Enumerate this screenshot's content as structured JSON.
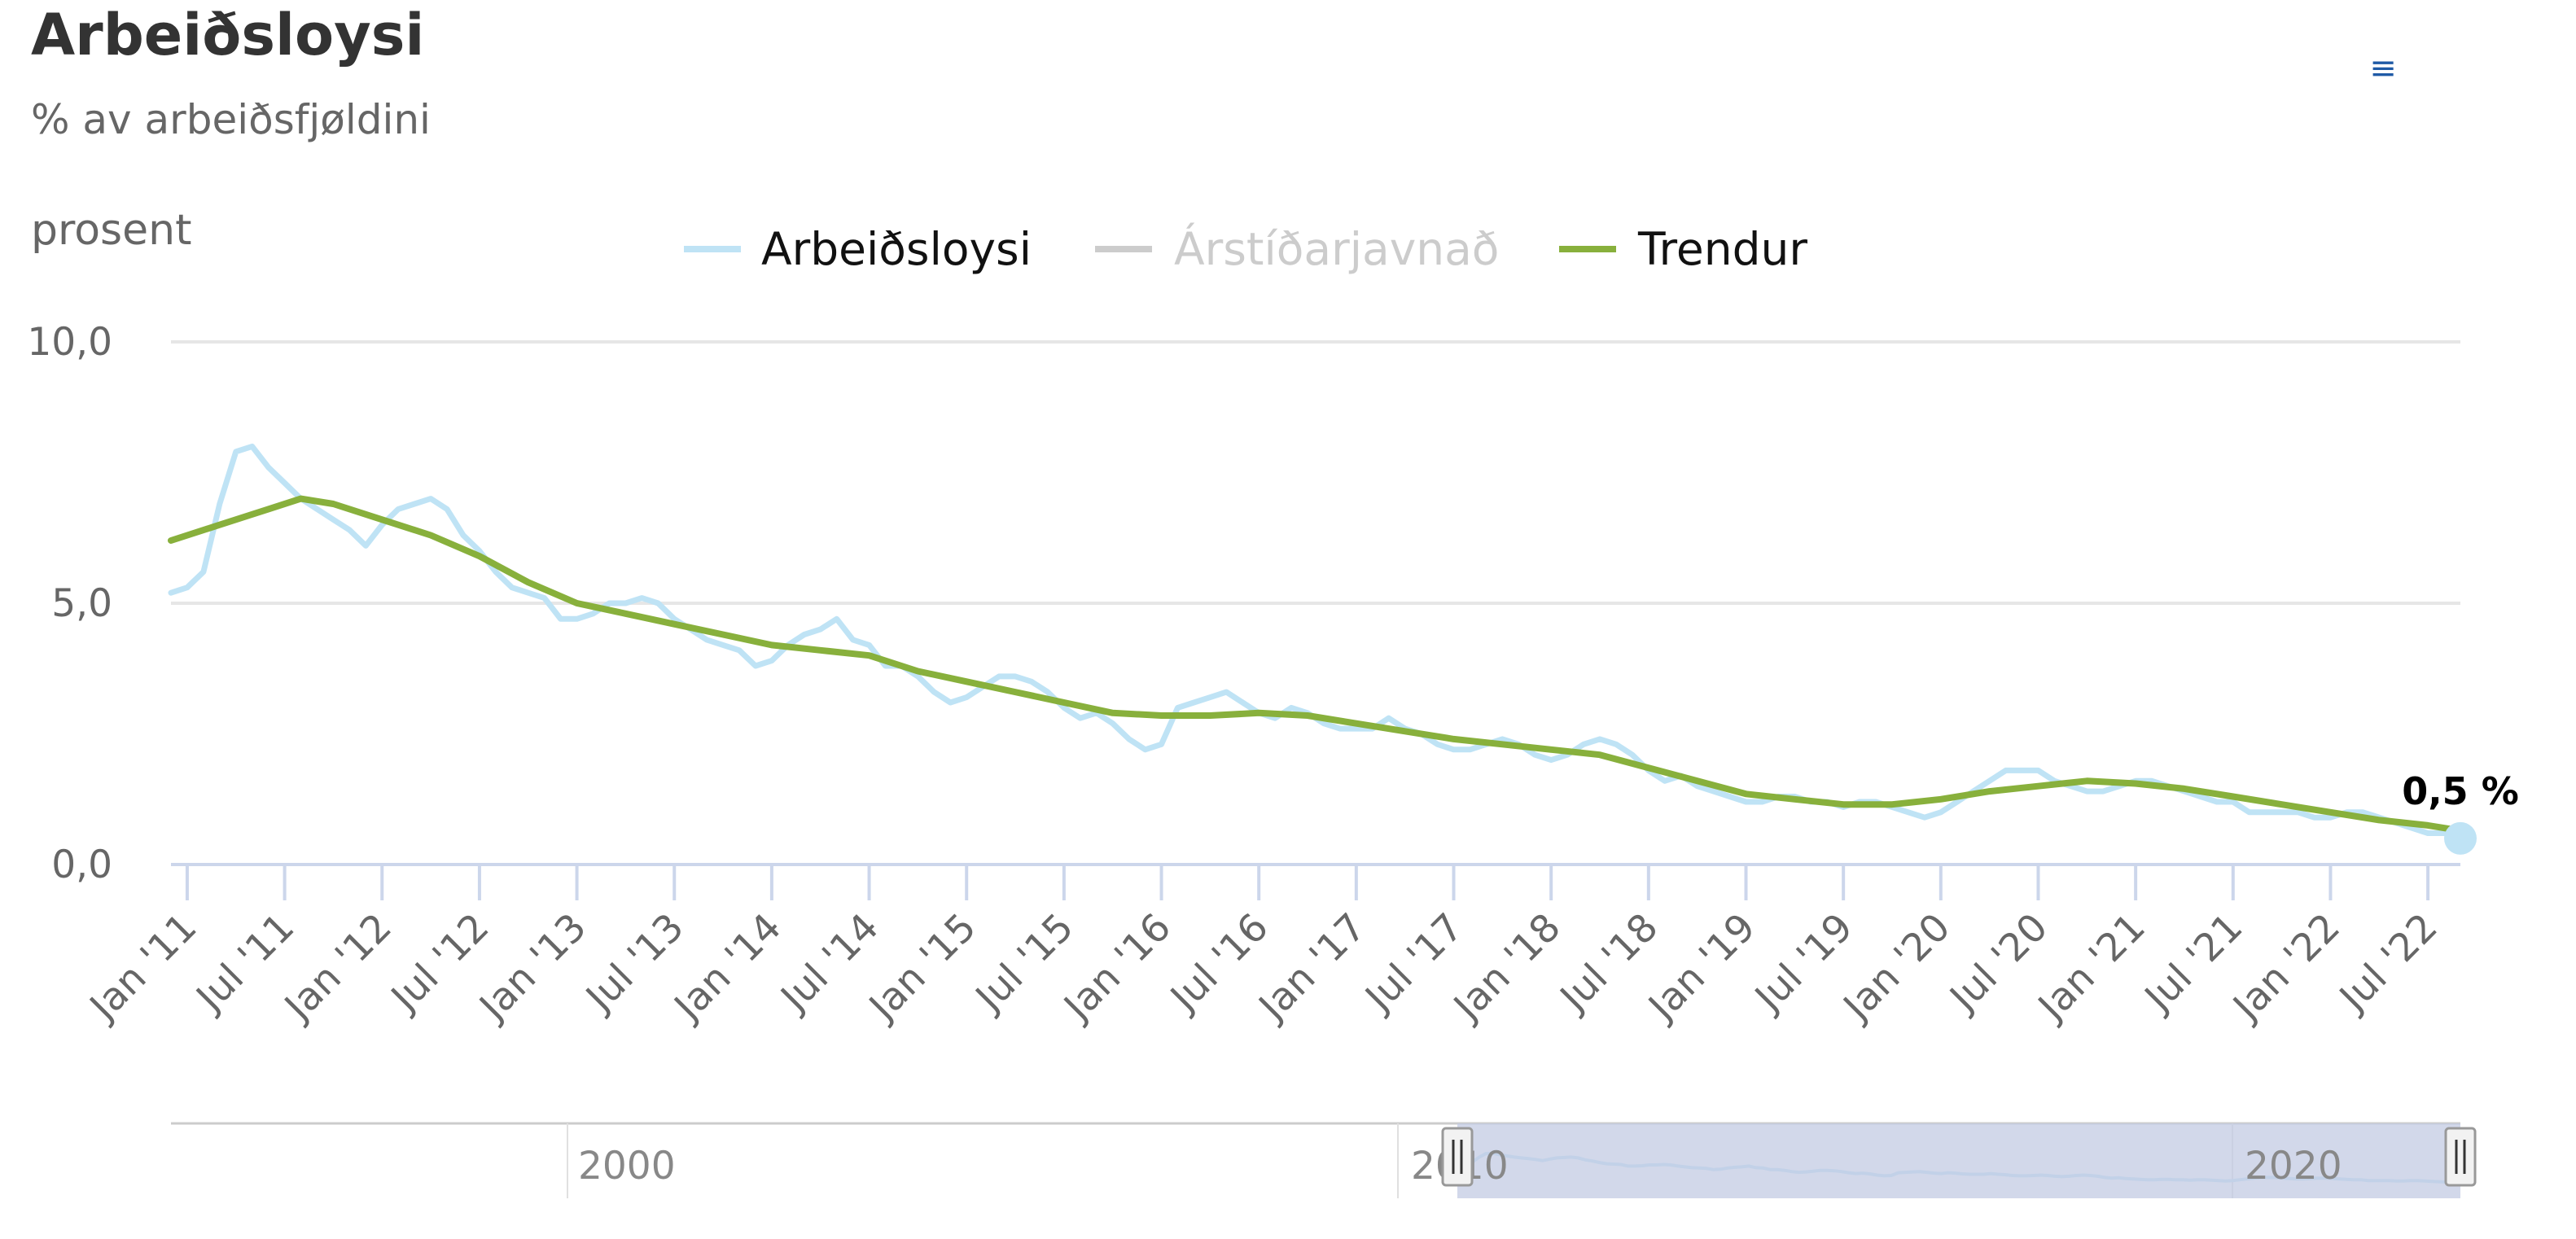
{
  "header": {
    "title": "Arbeiðsloysi",
    "subtitle": "% av arbeiðsfjøldini",
    "menu_icon": "hamburger-menu-icon"
  },
  "colors": {
    "unemployment": "#bfe3f5",
    "seasonal": "#cccccc",
    "trend": "#88b03c",
    "grid": "#e6e6e6",
    "axis": "#ccd6eb",
    "navigator_mask": "#c3cbe3"
  },
  "navigator": {
    "labels": [
      "2000",
      "2010",
      "2020"
    ]
  },
  "chart_data": {
    "type": "line",
    "ylabel": "prosent",
    "ylim": [
      0,
      10
    ],
    "yticks": [
      "0,0",
      "5,0",
      "10,0"
    ],
    "xlim": [
      "2010-12",
      "2022-09"
    ],
    "xticks": [
      "Jan '11",
      "Jul '11",
      "Jan '12",
      "Jul '12",
      "Jan '13",
      "Jul '13",
      "Jan '14",
      "Jul '14",
      "Jan '15",
      "Jul '15",
      "Jan '16",
      "Jul '16",
      "Jan '17",
      "Jul '17",
      "Jan '18",
      "Jul '18",
      "Jan '19",
      "Jul '19",
      "Jan '20",
      "Jul '20",
      "Jan '21",
      "Jul '21",
      "Jan '22",
      "Jul '22"
    ],
    "legend_position": "top",
    "series": [
      {
        "name": "Arbeiðsloysi",
        "visible": true,
        "points": [
          [
            "2010-12",
            5.2
          ],
          [
            "2011-01",
            5.3
          ],
          [
            "2011-02",
            5.6
          ],
          [
            "2011-03",
            6.9
          ],
          [
            "2011-04",
            7.9
          ],
          [
            "2011-05",
            8.0
          ],
          [
            "2011-06",
            7.6
          ],
          [
            "2011-07",
            7.3
          ],
          [
            "2011-08",
            7.0
          ],
          [
            "2011-09",
            6.8
          ],
          [
            "2011-10",
            6.6
          ],
          [
            "2011-11",
            6.4
          ],
          [
            "2011-12",
            6.1
          ],
          [
            "2012-01",
            6.5
          ],
          [
            "2012-02",
            6.8
          ],
          [
            "2012-03",
            6.9
          ],
          [
            "2012-04",
            7.0
          ],
          [
            "2012-05",
            6.8
          ],
          [
            "2012-06",
            6.3
          ],
          [
            "2012-07",
            6.0
          ],
          [
            "2012-08",
            5.6
          ],
          [
            "2012-09",
            5.3
          ],
          [
            "2012-10",
            5.2
          ],
          [
            "2012-11",
            5.1
          ],
          [
            "2012-12",
            4.7
          ],
          [
            "2013-01",
            4.7
          ],
          [
            "2013-02",
            4.8
          ],
          [
            "2013-03",
            5.0
          ],
          [
            "2013-04",
            5.0
          ],
          [
            "2013-05",
            5.1
          ],
          [
            "2013-06",
            5.0
          ],
          [
            "2013-07",
            4.7
          ],
          [
            "2013-08",
            4.5
          ],
          [
            "2013-09",
            4.3
          ],
          [
            "2013-10",
            4.2
          ],
          [
            "2013-11",
            4.1
          ],
          [
            "2013-12",
            3.8
          ],
          [
            "2014-01",
            3.9
          ],
          [
            "2014-02",
            4.2
          ],
          [
            "2014-03",
            4.4
          ],
          [
            "2014-04",
            4.5
          ],
          [
            "2014-05",
            4.7
          ],
          [
            "2014-06",
            4.3
          ],
          [
            "2014-07",
            4.2
          ],
          [
            "2014-08",
            3.8
          ],
          [
            "2014-09",
            3.8
          ],
          [
            "2014-10",
            3.6
          ],
          [
            "2014-11",
            3.3
          ],
          [
            "2014-12",
            3.1
          ],
          [
            "2015-01",
            3.2
          ],
          [
            "2015-02",
            3.4
          ],
          [
            "2015-03",
            3.6
          ],
          [
            "2015-04",
            3.6
          ],
          [
            "2015-05",
            3.5
          ],
          [
            "2015-06",
            3.3
          ],
          [
            "2015-07",
            3.0
          ],
          [
            "2015-08",
            2.8
          ],
          [
            "2015-09",
            2.9
          ],
          [
            "2015-10",
            2.7
          ],
          [
            "2015-11",
            2.4
          ],
          [
            "2015-12",
            2.2
          ],
          [
            "2016-01",
            2.3
          ],
          [
            "2016-02",
            3.0
          ],
          [
            "2016-03",
            3.1
          ],
          [
            "2016-04",
            3.2
          ],
          [
            "2016-05",
            3.3
          ],
          [
            "2016-06",
            3.1
          ],
          [
            "2016-07",
            2.9
          ],
          [
            "2016-08",
            2.8
          ],
          [
            "2016-09",
            3.0
          ],
          [
            "2016-10",
            2.9
          ],
          [
            "2016-11",
            2.7
          ],
          [
            "2016-12",
            2.6
          ],
          [
            "2017-01",
            2.6
          ],
          [
            "2017-02",
            2.6
          ],
          [
            "2017-03",
            2.8
          ],
          [
            "2017-04",
            2.6
          ],
          [
            "2017-05",
            2.5
          ],
          [
            "2017-06",
            2.3
          ],
          [
            "2017-07",
            2.2
          ],
          [
            "2017-08",
            2.2
          ],
          [
            "2017-09",
            2.3
          ],
          [
            "2017-10",
            2.4
          ],
          [
            "2017-11",
            2.3
          ],
          [
            "2017-12",
            2.1
          ],
          [
            "2018-01",
            2.0
          ],
          [
            "2018-02",
            2.1
          ],
          [
            "2018-03",
            2.3
          ],
          [
            "2018-04",
            2.4
          ],
          [
            "2018-05",
            2.3
          ],
          [
            "2018-06",
            2.1
          ],
          [
            "2018-07",
            1.8
          ],
          [
            "2018-08",
            1.6
          ],
          [
            "2018-09",
            1.7
          ],
          [
            "2018-10",
            1.5
          ],
          [
            "2018-11",
            1.4
          ],
          [
            "2018-12",
            1.3
          ],
          [
            "2019-01",
            1.2
          ],
          [
            "2019-02",
            1.2
          ],
          [
            "2019-03",
            1.3
          ],
          [
            "2019-04",
            1.3
          ],
          [
            "2019-05",
            1.2
          ],
          [
            "2019-06",
            1.2
          ],
          [
            "2019-07",
            1.1
          ],
          [
            "2019-08",
            1.2
          ],
          [
            "2019-09",
            1.2
          ],
          [
            "2019-10",
            1.1
          ],
          [
            "2019-11",
            1.0
          ],
          [
            "2019-12",
            0.9
          ],
          [
            "2020-01",
            1.0
          ],
          [
            "2020-02",
            1.2
          ],
          [
            "2020-03",
            1.4
          ],
          [
            "2020-04",
            1.6
          ],
          [
            "2020-05",
            1.8
          ],
          [
            "2020-06",
            1.8
          ],
          [
            "2020-07",
            1.8
          ],
          [
            "2020-08",
            1.6
          ],
          [
            "2020-09",
            1.5
          ],
          [
            "2020-10",
            1.4
          ],
          [
            "2020-11",
            1.4
          ],
          [
            "2020-12",
            1.5
          ],
          [
            "2021-01",
            1.6
          ],
          [
            "2021-02",
            1.6
          ],
          [
            "2021-03",
            1.5
          ],
          [
            "2021-04",
            1.4
          ],
          [
            "2021-05",
            1.3
          ],
          [
            "2021-06",
            1.2
          ],
          [
            "2021-07",
            1.2
          ],
          [
            "2021-08",
            1.0
          ],
          [
            "2021-09",
            1.0
          ],
          [
            "2021-10",
            1.0
          ],
          [
            "2021-11",
            1.0
          ],
          [
            "2021-12",
            0.9
          ],
          [
            "2022-01",
            0.9
          ],
          [
            "2022-02",
            1.0
          ],
          [
            "2022-03",
            1.0
          ],
          [
            "2022-04",
            0.9
          ],
          [
            "2022-05",
            0.8
          ],
          [
            "2022-06",
            0.7
          ],
          [
            "2022-07",
            0.6
          ],
          [
            "2022-08",
            0.6
          ],
          [
            "2022-09",
            0.5
          ]
        ]
      },
      {
        "name": "Árstíðarjavnað",
        "visible": false,
        "points": []
      },
      {
        "name": "Trendur",
        "visible": true,
        "points": [
          [
            "2010-12",
            6.2
          ],
          [
            "2011-03",
            6.5
          ],
          [
            "2011-06",
            6.8
          ],
          [
            "2011-08",
            7.0
          ],
          [
            "2011-10",
            6.9
          ],
          [
            "2012-01",
            6.6
          ],
          [
            "2012-04",
            6.3
          ],
          [
            "2012-07",
            5.9
          ],
          [
            "2012-10",
            5.4
          ],
          [
            "2013-01",
            5.0
          ],
          [
            "2013-04",
            4.8
          ],
          [
            "2013-07",
            4.6
          ],
          [
            "2013-10",
            4.4
          ],
          [
            "2014-01",
            4.2
          ],
          [
            "2014-04",
            4.1
          ],
          [
            "2014-07",
            4.0
          ],
          [
            "2014-10",
            3.7
          ],
          [
            "2015-01",
            3.5
          ],
          [
            "2015-04",
            3.3
          ],
          [
            "2015-07",
            3.1
          ],
          [
            "2015-10",
            2.9
          ],
          [
            "2016-01",
            2.85
          ],
          [
            "2016-04",
            2.85
          ],
          [
            "2016-07",
            2.9
          ],
          [
            "2016-10",
            2.85
          ],
          [
            "2017-01",
            2.7
          ],
          [
            "2017-04",
            2.55
          ],
          [
            "2017-07",
            2.4
          ],
          [
            "2017-10",
            2.3
          ],
          [
            "2018-01",
            2.2
          ],
          [
            "2018-04",
            2.1
          ],
          [
            "2018-07",
            1.85
          ],
          [
            "2018-10",
            1.6
          ],
          [
            "2019-01",
            1.35
          ],
          [
            "2019-04",
            1.25
          ],
          [
            "2019-07",
            1.15
          ],
          [
            "2019-10",
            1.15
          ],
          [
            "2020-01",
            1.25
          ],
          [
            "2020-04",
            1.4
          ],
          [
            "2020-07",
            1.5
          ],
          [
            "2020-10",
            1.6
          ],
          [
            "2021-01",
            1.55
          ],
          [
            "2021-04",
            1.45
          ],
          [
            "2021-07",
            1.3
          ],
          [
            "2021-10",
            1.15
          ],
          [
            "2022-01",
            1.0
          ],
          [
            "2022-04",
            0.85
          ],
          [
            "2022-07",
            0.75
          ],
          [
            "2022-09",
            0.65
          ]
        ]
      }
    ],
    "annotations": [
      {
        "x": "2022-09",
        "y": 0.5,
        "text": "0,5 %"
      }
    ]
  }
}
